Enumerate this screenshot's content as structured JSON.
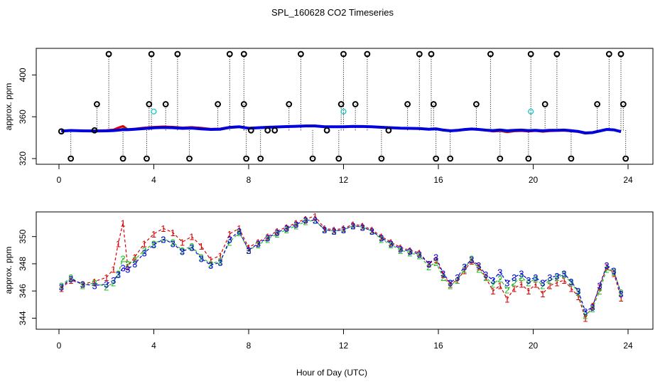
{
  "chart_data": [
    {
      "type": "scatter",
      "title": "SPL_160628  CO2 Timeseries",
      "ylabel": "approx. ppm",
      "xlabel": "",
      "xlim": [
        0,
        24
      ],
      "ylim": [
        320,
        420
      ],
      "x_ticks": [
        "0",
        "4",
        "8",
        "12",
        "16",
        "20",
        "24"
      ],
      "y_ticks": [
        "320",
        "360",
        "400"
      ],
      "series": [
        {
          "color": "#000000",
          "marker": "open-circle-bold",
          "x": [
            0.1,
            0.5,
            1.5,
            1.6,
            2.1,
            2.7,
            3.7,
            3.8,
            3.9,
            4.5,
            5.0,
            5.5,
            6.7,
            7.2,
            7.8,
            7.8,
            7.9,
            8.1,
            8.5,
            8.8,
            9.1,
            9.7,
            10.2,
            10.7,
            11.3,
            11.8,
            11.9,
            12.0,
            12.5,
            13.0,
            13.6,
            13.9,
            14.7,
            15.2,
            15.7,
            15.8,
            15.9,
            16.5,
            17.6,
            18.2,
            18.6,
            19.8,
            19.9,
            20.5,
            21.0,
            21.6,
            22.7,
            23.2,
            23.7,
            23.8,
            23.9
          ],
          "y": [
            346,
            320,
            347,
            372,
            420,
            320,
            320,
            372,
            420,
            372,
            420,
            320,
            372,
            420,
            420,
            372,
            320,
            347,
            320,
            347,
            347,
            372,
            420,
            320,
            347,
            320,
            372,
            420,
            372,
            420,
            320,
            347,
            372,
            420,
            420,
            372,
            320,
            320,
            372,
            420,
            320,
            320,
            420,
            372,
            420,
            320,
            372,
            420,
            420,
            372,
            320
          ]
        },
        {
          "color": "#22cccc",
          "marker": "open-circle",
          "x": [
            4.0,
            12.0,
            19.9
          ],
          "y": [
            365,
            365,
            365
          ]
        }
      ]
    },
    {
      "type": "line",
      "title": "",
      "ylabel": "approx. ppm",
      "xlabel": "Hour of Day (UTC)",
      "xlim": [
        0,
        24
      ],
      "ylim": [
        343.5,
        351.5
      ],
      "x_ticks": [
        "0",
        "4",
        "8",
        "12",
        "16",
        "20",
        "24"
      ],
      "y_ticks": [
        "344",
        "346",
        "348",
        "350"
      ],
      "series": [
        {
          "label_marker": "1",
          "color": "#dd0000",
          "x": [
            0.1,
            0.5,
            1.0,
            1.5,
            2.0,
            2.3,
            2.5,
            2.7,
            2.9,
            3.2,
            3.6,
            4.0,
            4.4,
            4.8,
            5.2,
            5.6,
            6.0,
            6.4,
            6.8,
            7.2,
            7.6,
            8.0,
            8.4,
            8.8,
            9.2,
            9.6,
            10.0,
            10.4,
            10.8,
            11.2,
            11.6,
            12.0,
            12.4,
            12.8,
            13.2,
            13.6,
            14.0,
            14.4,
            14.8,
            15.2,
            15.6,
            15.9,
            16.2,
            16.5,
            16.8,
            17.1,
            17.4,
            17.7,
            18.0,
            18.3,
            18.6,
            18.9,
            19.2,
            19.5,
            19.8,
            20.1,
            20.4,
            20.7,
            21.0,
            21.3,
            21.6,
            21.9,
            22.2,
            22.5,
            22.8,
            23.1,
            23.4,
            23.7
          ],
          "y": [
            346.2,
            346.8,
            346.5,
            346.7,
            347.0,
            347.6,
            349.5,
            351.0,
            347.8,
            348.5,
            349.5,
            350.2,
            350.6,
            350.3,
            349.6,
            350.0,
            349.3,
            348.3,
            348.6,
            350.2,
            350.6,
            349.2,
            349.6,
            350.0,
            350.4,
            350.7,
            351.0,
            351.3,
            351.5,
            350.6,
            350.5,
            350.6,
            350.9,
            350.8,
            350.5,
            350.0,
            349.6,
            349.2,
            349.0,
            348.8,
            348.0,
            348.3,
            347.2,
            346.5,
            346.8,
            347.5,
            348.2,
            347.8,
            347.0,
            346.0,
            346.4,
            345.4,
            346.2,
            346.5,
            346.0,
            346.5,
            345.8,
            346.4,
            346.6,
            346.8,
            346.2,
            345.6,
            344.0,
            344.9,
            346.3,
            347.8,
            347.3,
            345.5
          ]
        },
        {
          "label_marker": "2",
          "color": "#22bb22",
          "x": [
            0.1,
            0.5,
            1.0,
            1.5,
            2.0,
            2.3,
            2.5,
            2.7,
            2.9,
            3.2,
            3.6,
            4.0,
            4.4,
            4.8,
            5.2,
            5.6,
            6.0,
            6.4,
            6.8,
            7.2,
            7.6,
            8.0,
            8.4,
            8.8,
            9.2,
            9.6,
            10.0,
            10.4,
            10.8,
            11.2,
            11.6,
            12.0,
            12.4,
            12.8,
            13.2,
            13.6,
            14.0,
            14.4,
            14.8,
            15.2,
            15.6,
            15.9,
            16.2,
            16.5,
            16.8,
            17.1,
            17.4,
            17.7,
            18.0,
            18.3,
            18.6,
            18.9,
            19.2,
            19.5,
            19.8,
            20.1,
            20.4,
            20.7,
            21.0,
            21.3,
            21.6,
            21.9,
            22.2,
            22.5,
            22.8,
            23.1,
            23.4,
            23.7
          ],
          "y": [
            346.4,
            347.0,
            346.4,
            346.6,
            346.3,
            346.6,
            347.3,
            348.4,
            348.0,
            348.3,
            349.0,
            349.5,
            349.8,
            349.6,
            349.0,
            349.3,
            348.5,
            348.0,
            348.2,
            349.6,
            350.3,
            349.0,
            349.4,
            349.8,
            350.2,
            350.5,
            350.8,
            351.1,
            351.2,
            350.5,
            350.4,
            350.5,
            350.8,
            350.7,
            350.4,
            349.8,
            349.4,
            349.0,
            348.8,
            348.6,
            347.8,
            348.1,
            347.0,
            346.4,
            346.8,
            347.6,
            348.4,
            347.6,
            347.0,
            346.5,
            346.9,
            346.1,
            346.6,
            347.0,
            346.6,
            346.9,
            346.4,
            346.8,
            347.0,
            347.2,
            346.6,
            345.9,
            344.2,
            344.7,
            346.0,
            347.6,
            347.4,
            345.9
          ]
        },
        {
          "label_marker": "3",
          "color": "#0000dd",
          "x": [
            0.1,
            0.5,
            1.0,
            1.5,
            2.0,
            2.3,
            2.5,
            2.7,
            2.9,
            3.2,
            3.6,
            4.0,
            4.4,
            4.8,
            5.2,
            5.6,
            6.0,
            6.4,
            6.8,
            7.2,
            7.6,
            8.0,
            8.4,
            8.8,
            9.2,
            9.6,
            10.0,
            10.4,
            10.8,
            11.2,
            11.6,
            12.0,
            12.4,
            12.8,
            13.2,
            13.6,
            14.0,
            14.4,
            14.8,
            15.2,
            15.6,
            15.9,
            16.2,
            16.5,
            16.8,
            17.1,
            17.4,
            17.7,
            18.0,
            18.3,
            18.6,
            18.9,
            19.2,
            19.5,
            19.8,
            20.1,
            20.4,
            20.7,
            21.0,
            21.3,
            21.6,
            21.9,
            22.2,
            22.5,
            22.8,
            23.1,
            23.4,
            23.7
          ],
          "y": [
            346.3,
            346.9,
            346.5,
            346.4,
            346.5,
            346.8,
            347.2,
            347.7,
            347.6,
            348.0,
            348.8,
            349.4,
            349.8,
            349.5,
            348.9,
            349.2,
            348.4,
            347.9,
            348.1,
            349.8,
            350.4,
            349.0,
            349.5,
            349.9,
            350.3,
            350.6,
            350.9,
            351.2,
            351.2,
            350.5,
            350.4,
            350.5,
            350.8,
            350.7,
            350.4,
            349.9,
            349.5,
            349.1,
            348.9,
            348.7,
            348.0,
            348.5,
            347.3,
            346.6,
            347.0,
            347.8,
            348.3,
            347.9,
            347.2,
            346.8,
            347.4,
            346.6,
            347.0,
            347.3,
            346.8,
            347.0,
            346.6,
            347.0,
            347.1,
            347.3,
            346.7,
            346.0,
            344.5,
            344.8,
            346.4,
            347.9,
            347.5,
            345.8
          ]
        }
      ]
    }
  ]
}
